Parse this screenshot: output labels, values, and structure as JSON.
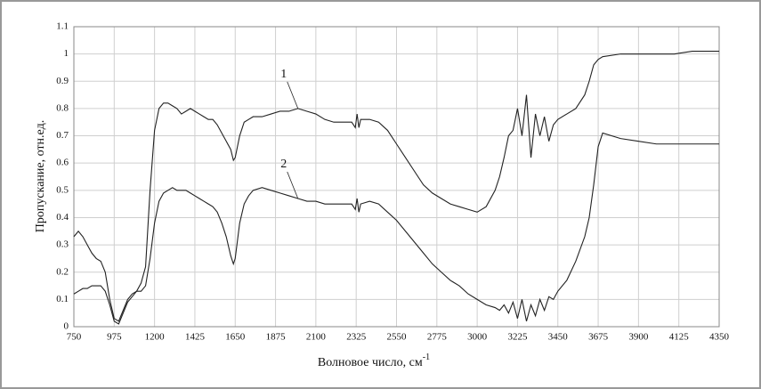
{
  "chart_data": {
    "type": "line",
    "ylabel": "Пропускание, отн.ед.",
    "xlabel": "Волновое число, см",
    "xlabel_sup": "-1",
    "xlim": [
      750,
      4350
    ],
    "xticks": [
      750,
      975,
      1200,
      1425,
      1650,
      1875,
      2100,
      2325,
      2550,
      2775,
      3000,
      3225,
      3450,
      3675,
      3900,
      4125,
      4350
    ],
    "ylim": [
      0,
      1.1
    ],
    "yticks": [
      0,
      0.1,
      0.2,
      0.3,
      0.4,
      0.5,
      0.6,
      0.7,
      0.8,
      0.9,
      1,
      1.1
    ],
    "grid": true,
    "x": [
      750,
      775,
      800,
      825,
      850,
      875,
      900,
      925,
      950,
      975,
      1000,
      1025,
      1050,
      1075,
      1100,
      1125,
      1150,
      1175,
      1200,
      1225,
      1250,
      1275,
      1300,
      1325,
      1350,
      1375,
      1400,
      1425,
      1450,
      1475,
      1500,
      1525,
      1550,
      1575,
      1600,
      1625,
      1640,
      1650,
      1675,
      1700,
      1725,
      1750,
      1800,
      1850,
      1900,
      1950,
      2000,
      2050,
      2100,
      2150,
      2200,
      2250,
      2300,
      2320,
      2330,
      2340,
      2350,
      2400,
      2450,
      2500,
      2550,
      2600,
      2650,
      2700,
      2750,
      2800,
      2850,
      2900,
      2950,
      3000,
      3050,
      3100,
      3125,
      3150,
      3175,
      3200,
      3225,
      3250,
      3275,
      3300,
      3325,
      3350,
      3375,
      3400,
      3425,
      3450,
      3500,
      3550,
      3600,
      3625,
      3650,
      3675,
      3700,
      3800,
      3900,
      4000,
      4100,
      4200,
      4300,
      4350
    ],
    "series": [
      {
        "name": "1",
        "color": "#222222",
        "values": [
          0.33,
          0.35,
          0.33,
          0.3,
          0.27,
          0.25,
          0.24,
          0.2,
          0.1,
          0.03,
          0.02,
          0.06,
          0.1,
          0.12,
          0.13,
          0.16,
          0.22,
          0.5,
          0.72,
          0.8,
          0.82,
          0.82,
          0.81,
          0.8,
          0.78,
          0.79,
          0.8,
          0.79,
          0.78,
          0.77,
          0.76,
          0.76,
          0.74,
          0.71,
          0.68,
          0.65,
          0.61,
          0.62,
          0.7,
          0.75,
          0.76,
          0.77,
          0.77,
          0.78,
          0.79,
          0.79,
          0.8,
          0.79,
          0.78,
          0.76,
          0.75,
          0.75,
          0.75,
          0.73,
          0.78,
          0.73,
          0.76,
          0.76,
          0.75,
          0.72,
          0.67,
          0.62,
          0.57,
          0.52,
          0.49,
          0.47,
          0.45,
          0.44,
          0.43,
          0.42,
          0.44,
          0.5,
          0.55,
          0.62,
          0.7,
          0.72,
          0.8,
          0.7,
          0.85,
          0.62,
          0.78,
          0.7,
          0.77,
          0.68,
          0.74,
          0.76,
          0.78,
          0.8,
          0.85,
          0.9,
          0.96,
          0.98,
          0.99,
          1.0,
          1.0,
          1.0,
          1.0,
          1.01,
          1.01,
          1.01
        ]
      },
      {
        "name": "2",
        "color": "#222222",
        "values": [
          0.12,
          0.13,
          0.14,
          0.14,
          0.15,
          0.15,
          0.15,
          0.13,
          0.08,
          0.02,
          0.01,
          0.05,
          0.09,
          0.11,
          0.13,
          0.13,
          0.15,
          0.25,
          0.38,
          0.46,
          0.49,
          0.5,
          0.51,
          0.5,
          0.5,
          0.5,
          0.49,
          0.48,
          0.47,
          0.46,
          0.45,
          0.44,
          0.42,
          0.38,
          0.33,
          0.26,
          0.23,
          0.25,
          0.38,
          0.45,
          0.48,
          0.5,
          0.51,
          0.5,
          0.49,
          0.48,
          0.47,
          0.46,
          0.46,
          0.45,
          0.45,
          0.45,
          0.45,
          0.43,
          0.47,
          0.42,
          0.45,
          0.46,
          0.45,
          0.42,
          0.39,
          0.35,
          0.31,
          0.27,
          0.23,
          0.2,
          0.17,
          0.15,
          0.12,
          0.1,
          0.08,
          0.07,
          0.06,
          0.08,
          0.05,
          0.09,
          0.03,
          0.1,
          0.02,
          0.08,
          0.04,
          0.1,
          0.06,
          0.11,
          0.1,
          0.13,
          0.17,
          0.24,
          0.33,
          0.4,
          0.52,
          0.66,
          0.71,
          0.69,
          0.68,
          0.67,
          0.67,
          0.67,
          0.67,
          0.67
        ]
      }
    ]
  }
}
